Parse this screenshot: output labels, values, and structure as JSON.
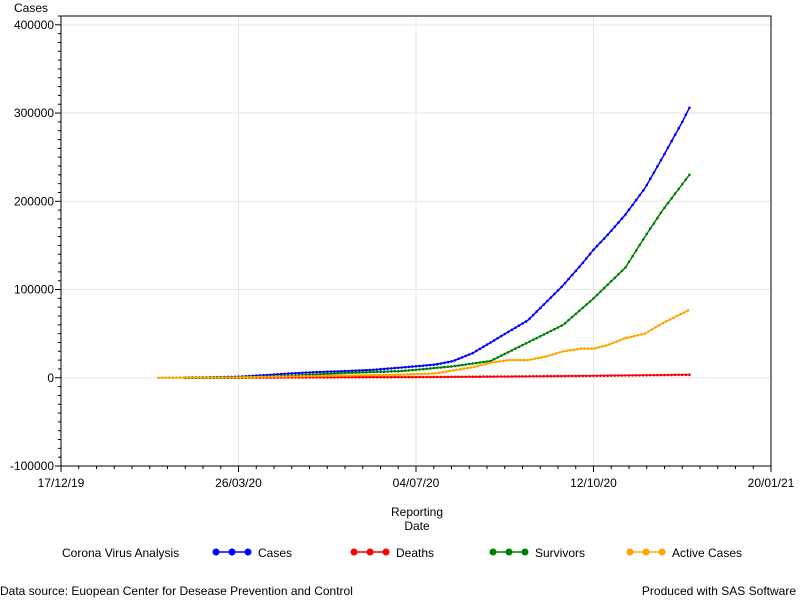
{
  "chart_data": {
    "type": "line",
    "ylabel": "Cases",
    "xlabel_line1": "Reporting",
    "xlabel_line2": "Date",
    "ylim": [
      -100000,
      410000
    ],
    "yticks": [
      -100000,
      0,
      100000,
      200000,
      300000,
      400000
    ],
    "ytick_labels": [
      "-100000",
      "0",
      "100000",
      "200000",
      "300000",
      "400000"
    ],
    "xlim": [
      "2019-12-17",
      "2021-01-20"
    ],
    "xticks": [
      "2019-12-17",
      "2020-03-26",
      "2020-07-04",
      "2020-10-12",
      "2021-01-20"
    ],
    "xtick_labels": [
      "17/12/19",
      "26/03/20",
      "04/07/20",
      "12/10/20",
      "20/01/21"
    ],
    "grid": true,
    "legend_title": "Corona Virus Analysis",
    "legend_position": "bottom",
    "series": [
      {
        "name": "Cases",
        "color": "#0000ff",
        "points": [
          [
            "2020-02-25",
            0
          ],
          [
            "2020-03-10",
            500
          ],
          [
            "2020-03-26",
            1200
          ],
          [
            "2020-04-10",
            3000
          ],
          [
            "2020-04-25",
            5000
          ],
          [
            "2020-05-10",
            6500
          ],
          [
            "2020-05-25",
            7500
          ],
          [
            "2020-06-10",
            9000
          ],
          [
            "2020-06-25",
            11500
          ],
          [
            "2020-07-04",
            13000
          ],
          [
            "2020-07-15",
            15000
          ],
          [
            "2020-07-25",
            19000
          ],
          [
            "2020-08-05",
            28000
          ],
          [
            "2020-08-15",
            40000
          ],
          [
            "2020-08-25",
            52000
          ],
          [
            "2020-09-05",
            65000
          ],
          [
            "2020-09-15",
            85000
          ],
          [
            "2020-09-25",
            105000
          ],
          [
            "2020-10-05",
            128000
          ],
          [
            "2020-10-12",
            145000
          ],
          [
            "2020-10-20",
            162000
          ],
          [
            "2020-10-30",
            185000
          ],
          [
            "2020-11-10",
            215000
          ],
          [
            "2020-11-20",
            250000
          ],
          [
            "2020-12-01",
            290000
          ],
          [
            "2020-12-05",
            306000
          ]
        ]
      },
      {
        "name": "Deaths",
        "color": "#ff0000",
        "points": [
          [
            "2020-02-25",
            0
          ],
          [
            "2020-03-26",
            100
          ],
          [
            "2020-04-25",
            300
          ],
          [
            "2020-05-25",
            500
          ],
          [
            "2020-07-04",
            800
          ],
          [
            "2020-08-05",
            1200
          ],
          [
            "2020-09-05",
            1600
          ],
          [
            "2020-10-12",
            2200
          ],
          [
            "2020-11-10",
            2900
          ],
          [
            "2020-12-05",
            3500
          ]
        ]
      },
      {
        "name": "Survivors",
        "color": "#008000",
        "points": [
          [
            "2020-02-25",
            0
          ],
          [
            "2020-03-26",
            300
          ],
          [
            "2020-04-25",
            2500
          ],
          [
            "2020-05-25",
            5500
          ],
          [
            "2020-06-25",
            7500
          ],
          [
            "2020-07-04",
            9000
          ],
          [
            "2020-07-25",
            13000
          ],
          [
            "2020-08-15",
            19000
          ],
          [
            "2020-09-05",
            40000
          ],
          [
            "2020-09-25",
            60000
          ],
          [
            "2020-10-12",
            90000
          ],
          [
            "2020-10-30",
            125000
          ],
          [
            "2020-11-10",
            160000
          ],
          [
            "2020-11-20",
            190000
          ],
          [
            "2020-12-05",
            230000
          ]
        ]
      },
      {
        "name": "Active Cases",
        "color": "#ffa500",
        "points": [
          [
            "2020-02-10",
            0
          ],
          [
            "2020-03-26",
            500
          ],
          [
            "2020-04-25",
            1500
          ],
          [
            "2020-05-25",
            2500
          ],
          [
            "2020-06-25",
            3500
          ],
          [
            "2020-07-15",
            5000
          ],
          [
            "2020-08-05",
            12000
          ],
          [
            "2020-08-15",
            17000
          ],
          [
            "2020-08-25",
            20000
          ],
          [
            "2020-09-05",
            20000
          ],
          [
            "2020-09-15",
            24000
          ],
          [
            "2020-09-25",
            30000
          ],
          [
            "2020-10-05",
            33000
          ],
          [
            "2020-10-12",
            33000
          ],
          [
            "2020-10-20",
            37000
          ],
          [
            "2020-10-30",
            45000
          ],
          [
            "2020-11-10",
            50000
          ],
          [
            "2020-11-20",
            62000
          ],
          [
            "2020-12-05",
            77000
          ]
        ]
      }
    ]
  },
  "footer": {
    "left": "Data source: Euopean Center for Desease Prevention and Control",
    "right": "Produced with SAS Software"
  }
}
